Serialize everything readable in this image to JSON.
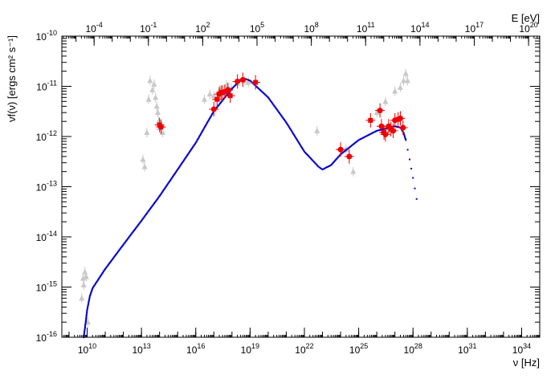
{
  "chart_data": {
    "type": "scatter",
    "xlabel": "ν [Hz]",
    "ylabel": "νf(ν) [ergs cm² s⁻¹]",
    "top_axis_label": "E [eV]",
    "x_scale": "log",
    "y_scale": "log",
    "xlim": [
      400000000.0,
      1e+35
    ],
    "ylim": [
      1e-16,
      1e-10
    ],
    "x_ticks": [
      {
        "value": 10000000000.0,
        "base": "10",
        "exp": "10"
      },
      {
        "value": 10000000000000.0,
        "base": "10",
        "exp": "13"
      },
      {
        "value": 1e+16,
        "base": "10",
        "exp": "16"
      },
      {
        "value": 1e+19,
        "base": "10",
        "exp": "19"
      },
      {
        "value": 1e+22,
        "base": "10",
        "exp": "22"
      },
      {
        "value": 1e+25,
        "base": "10",
        "exp": "25"
      },
      {
        "value": 1e+28,
        "base": "10",
        "exp": "28"
      },
      {
        "value": 1e+31,
        "base": "10",
        "exp": "31"
      },
      {
        "value": 1e+34,
        "base": "10",
        "exp": "34"
      }
    ],
    "top_ticks": [
      {
        "value": 0.0001,
        "base": "10",
        "exp": "-4"
      },
      {
        "value": 0.1,
        "base": "10",
        "exp": "-1"
      },
      {
        "value": 100.0,
        "base": "10",
        "exp": "2"
      },
      {
        "value": 100000.0,
        "base": "10",
        "exp": "5"
      },
      {
        "value": 100000000.0,
        "base": "10",
        "exp": "8"
      },
      {
        "value": 100000000000.0,
        "base": "10",
        "exp": "11"
      },
      {
        "value": 100000000000000.0,
        "base": "10",
        "exp": "14"
      },
      {
        "value": 1e+17,
        "base": "10",
        "exp": "17"
      },
      {
        "value": 1e+20,
        "base": "10",
        "exp": "20"
      }
    ],
    "y_ticks": [
      {
        "value": 1e-16,
        "base": "10",
        "exp": "-16"
      },
      {
        "value": 1e-15,
        "base": "10",
        "exp": "-15"
      },
      {
        "value": 1e-14,
        "base": "10",
        "exp": "-14"
      },
      {
        "value": 1e-13,
        "base": "10",
        "exp": "-13"
      },
      {
        "value": 1e-12,
        "base": "10",
        "exp": "-12"
      },
      {
        "value": 1e-11,
        "base": "10",
        "exp": "-11"
      },
      {
        "value": 1e-10,
        "base": "10",
        "exp": "-10"
      }
    ],
    "grid": false,
    "colors": {
      "archival": "#c8c8c8",
      "current": "#ee0000",
      "model": "#0000cc"
    },
    "series": [
      {
        "kind": "model_curve",
        "color": "#0000cc",
        "points": [
          [
            6500000000.0,
            1e-16
          ],
          [
            8000000000.0,
            1.8e-16
          ],
          [
            10000000000.0,
            3.5e-16
          ],
          [
            14000000000.0,
            6.5e-16
          ],
          [
            20000000000.0,
            9.5e-16
          ],
          [
            100000000000.0,
            2.3e-15
          ],
          [
            1000000000000.0,
            7e-15
          ],
          [
            10000000000000.0,
            2.1e-14
          ],
          [
            100000000000000.0,
            6.5e-14
          ],
          [
            1000000000000000.0,
            2.2e-13
          ],
          [
            1e+16,
            7.5e-13
          ],
          [
            1e+17,
            3.2e-12
          ],
          [
            1e+18,
            9e-12
          ],
          [
            3e+18,
            1.35e-11
          ],
          [
            5e+18,
            1.42e-11
          ],
          [
            1e+19,
            1.3e-11
          ],
          [
            1e+20,
            6e-12
          ],
          [
            1e+21,
            1.9e-12
          ],
          [
            1e+22,
            5e-13
          ],
          [
            6e+22,
            2.5e-13
          ],
          [
            1e+23,
            2.2e-13
          ],
          [
            3e+23,
            2.7e-13
          ],
          [
            1e+24,
            4.4e-13
          ],
          [
            1e+25,
            8.5e-13
          ],
          [
            1e+26,
            1.3e-12
          ],
          [
            1e+27,
            1.6e-12
          ],
          [
            2e+27,
            1.5e-12
          ],
          [
            3e+27,
            1.2e-12
          ],
          [
            4e+27,
            8.5e-13
          ],
          [
            6.5e+27,
            3.5e-13
          ],
          [
            1e+28,
            1.5e-13
          ],
          [
            2e+28,
            3.5e-14
          ]
        ]
      },
      {
        "kind": "archival_points",
        "color": "#c8c8c8",
        "points": [
          [
            5000000000.0,
            6e-16
          ],
          [
            6500000000.0,
            1.1e-15
          ],
          [
            7500000000.0,
            2e-15
          ],
          [
            9000000000.0,
            1.6e-15
          ],
          [
            6000000000.0,
            1.5e-15
          ],
          [
            11000000000.0,
            2e-16
          ],
          [
            12000000000000.0,
            3.5e-13
          ],
          [
            15000000000000.0,
            2.5e-13
          ],
          [
            20000000000000.0,
            1.2e-12
          ],
          [
            25000000000000.0,
            5.5e-12
          ],
          [
            30000000000000.0,
            1.3e-11
          ],
          [
            40000000000000.0,
            8.5e-12
          ],
          [
            50000000000000.0,
            1.1e-11
          ],
          [
            60000000000000.0,
            6e-12
          ],
          [
            70000000000000.0,
            4e-12
          ],
          [
            80000000000000.0,
            3e-12
          ],
          [
            90000000000000.0,
            2e-12
          ],
          [
            100000000000000.0,
            1.5e-12
          ],
          [
            120000000000000.0,
            1.8e-12
          ],
          [
            150000000000000.0,
            1.2e-12
          ],
          [
            3e+16,
            5.5e-12
          ],
          [
            6e+16,
            7e-12
          ],
          [
            1e+17,
            6.5e-12
          ],
          [
            2e+17,
            8.5e-12
          ],
          [
            5e+17,
            1.05e-11
          ],
          [
            9e+17,
            9e-12
          ],
          [
            2e+18,
            1.15e-11
          ],
          [
            5e+18,
            1.3e-11
          ],
          [
            8e+18,
            1.2e-11
          ],
          [
            5e+22,
            1.3e-12
          ],
          [
            2e+24,
            5.5e-13
          ],
          [
            3e+24,
            4e-13
          ],
          [
            5e+24,
            2e-13
          ],
          [
            1e+26,
            3e-12
          ],
          [
            3e+26,
            5e-12
          ],
          [
            1e+27,
            8e-12
          ],
          [
            2e+27,
            9.5e-12
          ],
          [
            3e+27,
            1.3e-11
          ],
          [
            4e+27,
            1.8e-11
          ],
          [
            5e+27,
            1.3e-11
          ]
        ]
      },
      {
        "kind": "current_points",
        "color": "#ee0000",
        "points": [
          [
            100000000000000.0,
            1.7e-12
          ],
          [
            120000000000000.0,
            1.55e-12
          ],
          [
            1e+17,
            3.5e-12
          ],
          [
            1.5e+17,
            5.5e-12
          ],
          [
            2e+17,
            7e-12
          ],
          [
            2.5e+17,
            7.5e-12
          ],
          [
            3e+17,
            7.5e-12
          ],
          [
            4e+17,
            7.8e-12
          ],
          [
            6e+17,
            8.5e-12
          ],
          [
            8e+17,
            6.5e-12
          ],
          [
            2e+18,
            1.25e-11
          ],
          [
            4e+18,
            1.35e-11
          ],
          [
            2e+19,
            1.2e-11
          ],
          [
            1e+24,
            5.5e-13
          ],
          [
            3e+24,
            4e-13
          ],
          [
            4.5e+25,
            2.1e-12
          ],
          [
            1.5e+26,
            3.3e-12
          ],
          [
            1.8e+26,
            1.6e-12
          ],
          [
            2.5e+26,
            1.2e-12
          ],
          [
            3e+26,
            1.1e-12
          ],
          [
            4.5e+26,
            1.6e-12
          ],
          [
            6e+26,
            1.4e-12
          ],
          [
            8e+26,
            1.3e-12
          ],
          [
            1e+27,
            2.1e-12
          ],
          [
            1.5e+27,
            2.2e-12
          ],
          [
            2e+27,
            2.3e-12
          ],
          [
            2.8e+27,
            1.5e-12
          ]
        ]
      }
    ]
  }
}
